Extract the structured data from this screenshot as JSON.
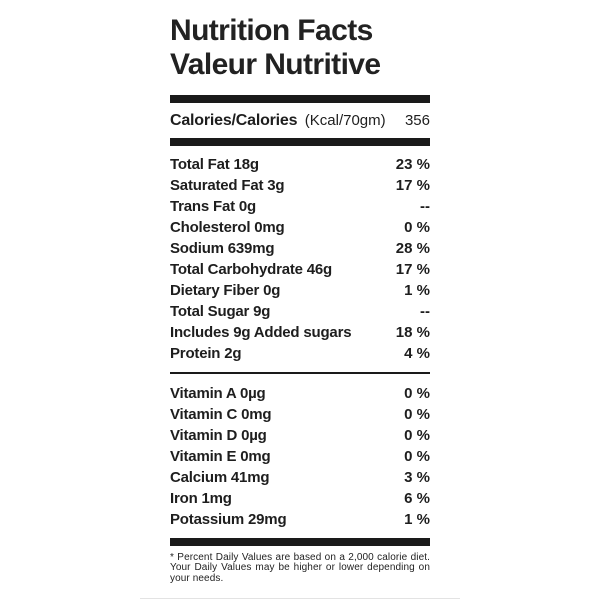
{
  "title": {
    "line1": "Nutrition Facts",
    "line2": "Valeur Nutritive"
  },
  "calories": {
    "label": "Calories/Calories",
    "unit": "(Kcal/70gm)",
    "value": "356"
  },
  "nutrients": [
    {
      "name": "Total Fat 18g",
      "dv": "23 %"
    },
    {
      "name": "Saturated Fat 3g",
      "dv": "17 %"
    },
    {
      "name": "Trans Fat 0g",
      "dv": "--"
    },
    {
      "name": "Cholesterol 0mg",
      "dv": "0 %"
    },
    {
      "name": "Sodium 639mg",
      "dv": "28 %"
    },
    {
      "name": "Total Carbohydrate 46g",
      "dv": "17 %"
    },
    {
      "name": "Dietary Fiber 0g",
      "dv": "1 %"
    },
    {
      "name": "Total Sugar 9g",
      "dv": "--"
    },
    {
      "name": "Includes 9g Added sugars",
      "dv": "18 %"
    },
    {
      "name": "Protein 2g",
      "dv": "4 %"
    }
  ],
  "micronutrients": [
    {
      "name": "Vitamin A 0µg",
      "dv": "0 %"
    },
    {
      "name": "Vitamin C 0mg",
      "dv": "0 %"
    },
    {
      "name": "Vitamin D 0µg",
      "dv": "0 %"
    },
    {
      "name": "Vitamin E 0mg",
      "dv": "0 %"
    },
    {
      "name": "Calcium 41mg",
      "dv": "3 %"
    },
    {
      "name": "Iron 1mg",
      "dv": "6 %"
    },
    {
      "name": "Potassium 29mg",
      "dv": "1 %"
    }
  ],
  "footnote": "* Percent Daily Values are based on a 2,000 calorie diet. Your Daily Values may be higher or lower depending on your needs.",
  "colors": {
    "text": "#1e1e1e",
    "bar": "#1a1a1a",
    "background": "#ffffff"
  }
}
